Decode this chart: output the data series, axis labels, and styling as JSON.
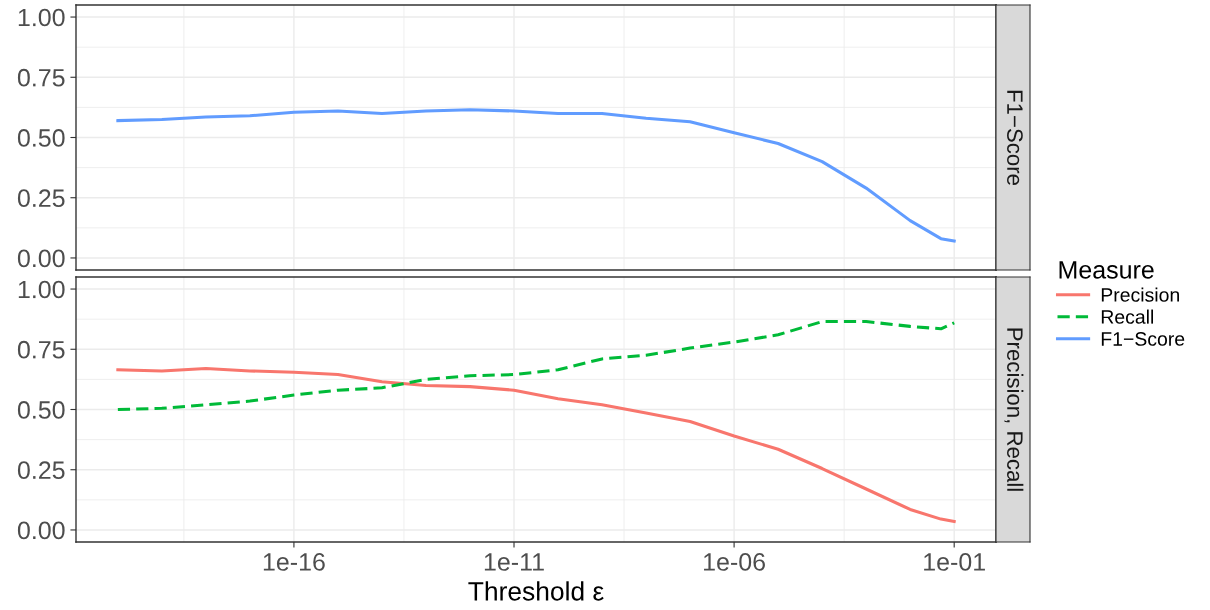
{
  "chart_data": [
    {
      "type": "line",
      "title": "F1−Score",
      "x": [
        1e-20,
        1e-19,
        1e-18,
        1e-17,
        1e-16,
        1e-15,
        1e-14,
        1e-13,
        1e-12,
        1e-11,
        1e-10,
        1e-09,
        1e-08,
        1e-07,
        1e-06,
        1e-05,
        0.0001,
        0.001,
        0.01,
        0.05,
        0.1
      ],
      "series": [
        {
          "name": "F1−Score",
          "color": "#619cff",
          "line_style": "solid",
          "values": [
            0.57,
            0.575,
            0.585,
            0.59,
            0.605,
            0.61,
            0.6,
            0.61,
            0.615,
            0.61,
            0.6,
            0.6,
            0.58,
            0.565,
            0.52,
            0.475,
            0.4,
            0.29,
            0.155,
            0.08,
            0.07
          ]
        }
      ],
      "log": "x",
      "xlim": [
        1.12e-21,
        0.891
      ],
      "xticks": [
        {
          "value": 1e-16,
          "label": null
        },
        {
          "value": 1e-11,
          "label": null
        },
        {
          "value": 1e-06,
          "label": null
        },
        {
          "value": 0.1,
          "label": null
        }
      ],
      "ylim": [
        -0.05,
        1.05
      ],
      "yticks": [
        {
          "value": 0,
          "label": "0.00"
        },
        {
          "value": 0.25,
          "label": "0.25"
        },
        {
          "value": 0.5,
          "label": "0.50"
        },
        {
          "value": 0.75,
          "label": "0.75"
        },
        {
          "value": 1,
          "label": "1.00"
        }
      ],
      "tick_labels": "y",
      "grid": true,
      "legend": "right",
      "legend_title": "Measure"
    },
    {
      "type": "line",
      "title": "Precision, Recall",
      "xlabel": "Threshold ε",
      "x": [
        1e-20,
        1e-19,
        1e-18,
        1e-17,
        1e-16,
        1e-15,
        1e-14,
        1e-13,
        1e-12,
        1e-11,
        1e-10,
        1e-09,
        1e-08,
        1e-07,
        1e-06,
        1e-05,
        0.0001,
        0.001,
        0.01,
        0.05,
        0.1
      ],
      "series": [
        {
          "name": "Precision",
          "color": "#f8766d",
          "line_style": "solid",
          "values": [
            0.665,
            0.66,
            0.67,
            0.66,
            0.655,
            0.645,
            0.615,
            0.6,
            0.595,
            0.58,
            0.545,
            0.52,
            0.485,
            0.45,
            0.39,
            0.335,
            0.255,
            0.17,
            0.085,
            0.045,
            0.035
          ]
        },
        {
          "name": "Recall",
          "color": "#00ba38",
          "line_style": "dashed",
          "values": [
            0.5,
            0.505,
            0.52,
            0.535,
            0.56,
            0.58,
            0.59,
            0.625,
            0.64,
            0.645,
            0.665,
            0.71,
            0.725,
            0.755,
            0.78,
            0.81,
            0.865,
            0.865,
            0.845,
            0.835,
            0.86
          ]
        }
      ],
      "log": "x",
      "xlim": [
        1.12e-21,
        0.891
      ],
      "xticks": [
        {
          "value": 1e-16,
          "label": "1e-16"
        },
        {
          "value": 1e-11,
          "label": "1e-11"
        },
        {
          "value": 1e-06,
          "label": "1e-06"
        },
        {
          "value": 0.1,
          "label": "1e-01"
        }
      ],
      "ylim": [
        -0.05,
        1.05
      ],
      "yticks": [
        {
          "value": 0,
          "label": "0.00"
        },
        {
          "value": 0.25,
          "label": "0.25"
        },
        {
          "value": 0.5,
          "label": "0.50"
        },
        {
          "value": 0.75,
          "label": "0.75"
        },
        {
          "value": 1,
          "label": "1.00"
        }
      ],
      "grid": true,
      "legend": "right"
    }
  ]
}
